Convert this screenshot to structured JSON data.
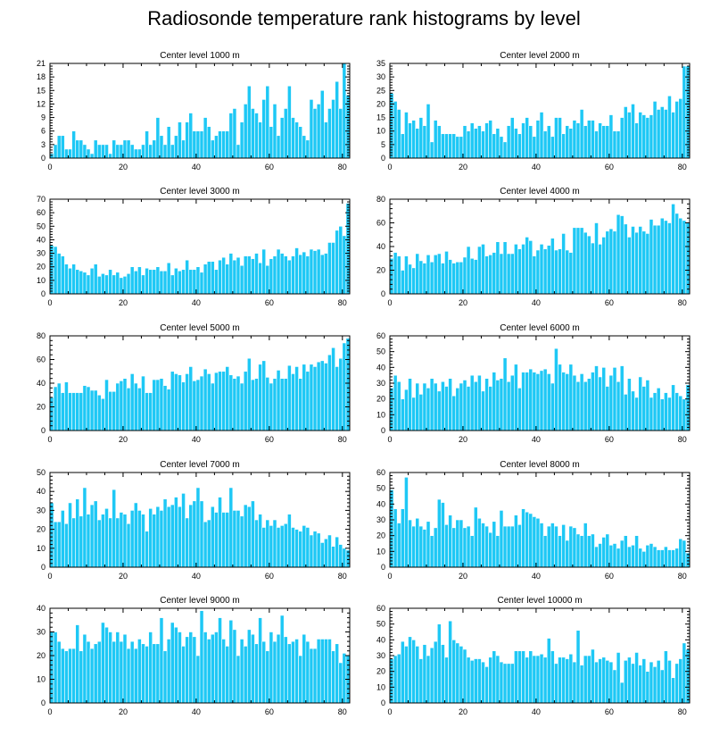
{
  "title": "Radiosonde temperature rank histograms by level",
  "style": {
    "bar_color": "#1EC8F5",
    "bar_edge": "#ffffff",
    "axis_color": "#000000"
  },
  "chart_data": [
    {
      "type": "bar",
      "title": "Center level 1000 m",
      "x": {
        "min": 0,
        "max": 82,
        "ticks": [
          0,
          20,
          40,
          60,
          80
        ]
      },
      "y": {
        "min": 0,
        "max": 21,
        "ticks": [
          0,
          3,
          6,
          9,
          12,
          15,
          18,
          21
        ]
      },
      "values": [
        1,
        3,
        5,
        5,
        2,
        2,
        6,
        4,
        4,
        3,
        2,
        1,
        4,
        3,
        3,
        3,
        1,
        4,
        3,
        3,
        4,
        4,
        3,
        2,
        2,
        3,
        6,
        3,
        4,
        9,
        5,
        3,
        7,
        3,
        5,
        8,
        4,
        8,
        10,
        6,
        6,
        6,
        9,
        7,
        4,
        5,
        6,
        6,
        6,
        10,
        11,
        3,
        8,
        12,
        16,
        11,
        10,
        8,
        13,
        16,
        7,
        12,
        5,
        9,
        11,
        16,
        9,
        8,
        7,
        5,
        4,
        13,
        11,
        12,
        15,
        8,
        11,
        13,
        17,
        11,
        21,
        14
      ]
    },
    {
      "type": "bar",
      "title": "Center level 2000 m",
      "x": {
        "min": 0,
        "max": 82,
        "ticks": [
          0,
          20,
          40,
          60,
          80
        ]
      },
      "y": {
        "min": 0,
        "max": 35,
        "ticks": [
          0,
          5,
          10,
          15,
          20,
          25,
          30,
          35
        ]
      },
      "values": [
        24,
        21,
        18,
        9,
        17,
        13,
        14,
        11,
        15,
        12,
        20,
        6,
        14,
        12,
        9,
        9,
        9,
        9,
        8,
        8,
        12,
        10,
        13,
        11,
        12,
        10,
        13,
        14,
        9,
        11,
        8,
        6,
        12,
        15,
        11,
        9,
        13,
        15,
        12,
        8,
        14,
        17,
        10,
        12,
        8,
        15,
        15,
        9,
        12,
        11,
        14,
        13,
        18,
        12,
        14,
        14,
        10,
        13,
        12,
        12,
        16,
        10,
        10,
        15,
        19,
        17,
        20,
        13,
        17,
        16,
        15,
        16,
        21,
        18,
        19,
        18,
        23,
        17,
        21,
        22,
        34,
        34
      ]
    },
    {
      "type": "bar",
      "title": "Center level 3000 m",
      "x": {
        "min": 0,
        "max": 82,
        "ticks": [
          0,
          20,
          40,
          60,
          80
        ]
      },
      "y": {
        "min": 0,
        "max": 70,
        "ticks": [
          0,
          10,
          20,
          30,
          40,
          50,
          60,
          70
        ]
      },
      "values": [
        36,
        35,
        30,
        28,
        22,
        19,
        22,
        18,
        17,
        16,
        14,
        19,
        22,
        13,
        15,
        14,
        18,
        14,
        16,
        12,
        13,
        15,
        20,
        17,
        20,
        14,
        19,
        18,
        18,
        20,
        17,
        17,
        23,
        14,
        19,
        17,
        18,
        25,
        18,
        18,
        20,
        16,
        22,
        24,
        24,
        18,
        25,
        27,
        22,
        30,
        25,
        27,
        21,
        28,
        28,
        26,
        30,
        23,
        33,
        21,
        26,
        28,
        33,
        30,
        28,
        25,
        28,
        34,
        29,
        31,
        28,
        33,
        32,
        33,
        29,
        30,
        38,
        38,
        47,
        50,
        43,
        67
      ]
    },
    {
      "type": "bar",
      "title": "Center level 4000 m",
      "x": {
        "min": 0,
        "max": 82,
        "ticks": [
          0,
          20,
          40,
          60,
          80
        ]
      },
      "y": {
        "min": 0,
        "max": 80,
        "ticks": [
          0,
          20,
          40,
          60,
          80
        ]
      },
      "values": [
        30,
        35,
        32,
        20,
        32,
        25,
        22,
        34,
        28,
        26,
        33,
        27,
        33,
        34,
        26,
        36,
        29,
        26,
        27,
        27,
        31,
        40,
        30,
        29,
        40,
        42,
        32,
        33,
        35,
        44,
        34,
        44,
        34,
        34,
        42,
        38,
        42,
        48,
        45,
        32,
        37,
        42,
        38,
        41,
        47,
        37,
        38,
        51,
        37,
        35,
        56,
        56,
        56,
        52,
        49,
        43,
        60,
        42,
        48,
        53,
        55,
        53,
        67,
        66,
        59,
        48,
        57,
        52,
        57,
        53,
        51,
        63,
        58,
        58,
        64,
        62,
        60,
        76,
        68,
        64,
        62,
        60
      ]
    },
    {
      "type": "bar",
      "title": "Center level 5000 m",
      "x": {
        "min": 0,
        "max": 82,
        "ticks": [
          0,
          20,
          40,
          60,
          80
        ]
      },
      "y": {
        "min": 0,
        "max": 80,
        "ticks": [
          0,
          20,
          40,
          60,
          80
        ]
      },
      "values": [
        28,
        37,
        40,
        32,
        41,
        32,
        32,
        32,
        32,
        38,
        37,
        34,
        34,
        30,
        27,
        43,
        33,
        33,
        40,
        42,
        44,
        36,
        48,
        40,
        36,
        46,
        32,
        32,
        43,
        43,
        44,
        38,
        35,
        50,
        48,
        47,
        41,
        48,
        54,
        42,
        43,
        46,
        52,
        48,
        40,
        49,
        50,
        50,
        54,
        47,
        44,
        46,
        40,
        50,
        61,
        43,
        44,
        56,
        59,
        45,
        40,
        44,
        51,
        44,
        44,
        55,
        48,
        54,
        44,
        56,
        50,
        56,
        54,
        58,
        59,
        57,
        64,
        70,
        54,
        61,
        74,
        78
      ]
    },
    {
      "type": "bar",
      "title": "Center level 6000 m",
      "x": {
        "min": 0,
        "max": 82,
        "ticks": [
          0,
          20,
          40,
          60,
          80
        ]
      },
      "y": {
        "min": 0,
        "max": 60,
        "ticks": [
          0,
          10,
          20,
          30,
          40,
          50,
          60
        ]
      },
      "values": [
        27,
        35,
        31,
        20,
        26,
        33,
        21,
        30,
        23,
        30,
        27,
        33,
        30,
        25,
        31,
        28,
        33,
        22,
        27,
        30,
        32,
        28,
        35,
        31,
        35,
        25,
        33,
        28,
        37,
        32,
        33,
        46,
        31,
        35,
        42,
        27,
        37,
        37,
        39,
        37,
        36,
        38,
        39,
        36,
        30,
        52,
        42,
        37,
        36,
        42,
        35,
        31,
        36,
        31,
        33,
        37,
        41,
        34,
        40,
        28,
        35,
        40,
        31,
        41,
        23,
        33,
        25,
        21,
        34,
        28,
        32,
        21,
        24,
        27,
        20,
        24,
        21,
        29,
        24,
        22,
        20,
        29
      ]
    },
    {
      "type": "bar",
      "title": "Center level 7000 m",
      "x": {
        "min": 0,
        "max": 82,
        "ticks": [
          0,
          20,
          40,
          60,
          80
        ]
      },
      "y": {
        "min": 0,
        "max": 50,
        "ticks": [
          0,
          10,
          20,
          30,
          40,
          50
        ]
      },
      "values": [
        34,
        24,
        24,
        30,
        23,
        34,
        26,
        36,
        27,
        42,
        28,
        33,
        35,
        25,
        28,
        31,
        26,
        41,
        26,
        29,
        28,
        23,
        30,
        34,
        30,
        28,
        19,
        31,
        28,
        32,
        30,
        36,
        32,
        33,
        37,
        32,
        39,
        26,
        33,
        35,
        42,
        35,
        24,
        25,
        32,
        29,
        37,
        29,
        29,
        42,
        30,
        30,
        27,
        33,
        32,
        35,
        25,
        28,
        21,
        25,
        22,
        25,
        21,
        22,
        23,
        28,
        21,
        20,
        19,
        22,
        21,
        17,
        19,
        18,
        13,
        15,
        17,
        11,
        16,
        12,
        10,
        9
      ]
    },
    {
      "type": "bar",
      "title": "Center level 8000 m",
      "x": {
        "min": 0,
        "max": 82,
        "ticks": [
          0,
          20,
          40,
          60,
          80
        ]
      },
      "y": {
        "min": 0,
        "max": 60,
        "ticks": [
          0,
          10,
          20,
          30,
          40,
          50,
          60
        ]
      },
      "values": [
        49,
        37,
        28,
        37,
        57,
        30,
        26,
        31,
        26,
        24,
        29,
        20,
        25,
        43,
        41,
        27,
        33,
        25,
        30,
        30,
        25,
        26,
        20,
        38,
        31,
        28,
        26,
        22,
        29,
        20,
        36,
        26,
        26,
        26,
        33,
        27,
        37,
        35,
        34,
        32,
        31,
        28,
        20,
        26,
        28,
        26,
        20,
        27,
        17,
        26,
        25,
        21,
        20,
        28,
        20,
        21,
        13,
        15,
        19,
        21,
        14,
        15,
        12,
        17,
        20,
        13,
        14,
        20,
        12,
        10,
        14,
        15,
        13,
        11,
        11,
        13,
        11,
        11,
        12,
        18,
        17,
        9
      ]
    },
    {
      "type": "bar",
      "title": "Center level 9000 m",
      "x": {
        "min": 0,
        "max": 82,
        "ticks": [
          0,
          20,
          40,
          60,
          80
        ]
      },
      "y": {
        "min": 0,
        "max": 40,
        "ticks": [
          0,
          10,
          20,
          30,
          40
        ]
      },
      "values": [
        30,
        30,
        26,
        23,
        22,
        23,
        23,
        33,
        22,
        29,
        26,
        23,
        25,
        26,
        34,
        32,
        30,
        26,
        30,
        26,
        29,
        23,
        26,
        23,
        27,
        25,
        24,
        30,
        25,
        25,
        36,
        22,
        27,
        34,
        32,
        30,
        24,
        28,
        30,
        28,
        20,
        39,
        30,
        27,
        29,
        30,
        36,
        27,
        24,
        35,
        31,
        20,
        27,
        24,
        31,
        29,
        25,
        36,
        26,
        22,
        30,
        26,
        29,
        37,
        28,
        25,
        26,
        27,
        20,
        29,
        26,
        23,
        23,
        27,
        27,
        27,
        27,
        22,
        25,
        17,
        21,
        20
      ]
    },
    {
      "type": "bar",
      "title": "Center level 10000 m",
      "x": {
        "min": 0,
        "max": 82,
        "ticks": [
          0,
          20,
          40,
          60,
          80
        ]
      },
      "y": {
        "min": 0,
        "max": 60,
        "ticks": [
          0,
          10,
          20,
          30,
          40,
          50,
          60
        ]
      },
      "values": [
        28,
        30,
        31,
        39,
        36,
        42,
        40,
        36,
        28,
        37,
        30,
        35,
        39,
        50,
        37,
        29,
        52,
        40,
        38,
        36,
        34,
        29,
        27,
        28,
        28,
        26,
        23,
        29,
        33,
        30,
        26,
        25,
        25,
        25,
        33,
        33,
        33,
        29,
        33,
        30,
        30,
        31,
        29,
        41,
        33,
        25,
        29,
        29,
        28,
        31,
        26,
        46,
        24,
        30,
        30,
        34,
        26,
        28,
        29,
        27,
        26,
        21,
        32,
        13,
        27,
        29,
        25,
        32,
        24,
        28,
        20,
        26,
        23,
        27,
        21,
        33,
        27,
        16,
        25,
        28,
        38,
        34
      ]
    }
  ]
}
